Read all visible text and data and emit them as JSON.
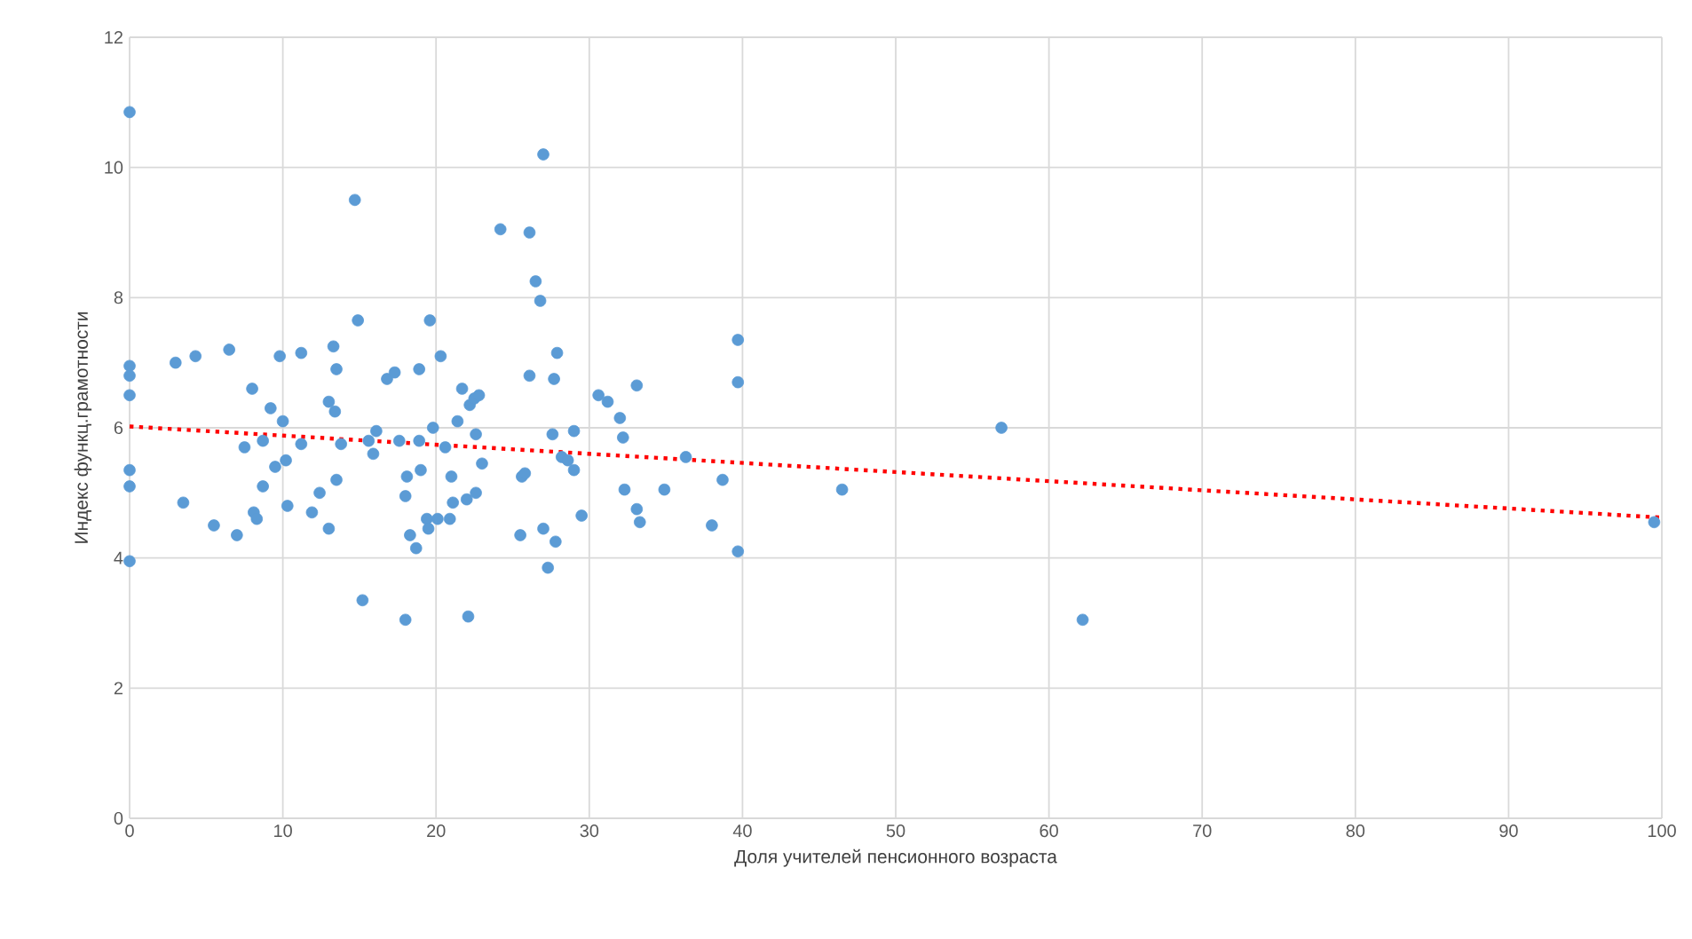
{
  "chart_data": {
    "type": "scatter",
    "xlabel": "Доля учителей пенсионного возраста",
    "ylabel": "Индекс функц.грамотности",
    "xlim": [
      0,
      100
    ],
    "ylim": [
      0,
      12
    ],
    "xticks": [
      0,
      10,
      20,
      30,
      40,
      50,
      60,
      70,
      80,
      90,
      100
    ],
    "yticks": [
      0,
      2,
      4,
      6,
      8,
      10,
      12
    ],
    "grid": true,
    "marker": "circle",
    "series": [
      {
        "color": "#5b9bd5",
        "x": [
          0,
          0,
          0,
          0,
          0,
          0,
          0,
          3,
          4.3,
          3.5,
          5.5,
          6.5,
          7,
          7.5,
          8,
          8.1,
          8.3,
          8.7,
          8.7,
          9.2,
          9.5,
          9.8,
          10,
          10.2,
          10.3,
          11.2,
          11.2,
          11.9,
          12.4,
          13,
          13,
          13.3,
          13.5,
          13.5,
          13.4,
          13.8,
          14.7,
          14.9,
          15.2,
          15.6,
          15.9,
          16.1,
          16.8,
          17.3,
          17.6,
          18,
          18,
          18.1,
          18.3,
          18.7,
          18.9,
          18.9,
          19,
          19.4,
          19.5,
          19.6,
          19.8,
          20.1,
          20.3,
          20.6,
          21,
          20.9,
          21.1,
          21.4,
          21.7,
          22,
          22.1,
          22.2,
          22.5,
          22.6,
          22.8,
          23,
          22.6,
          24.2,
          25.5,
          25.6,
          25.8,
          26.1,
          26.1,
          26.5,
          26.8,
          27,
          27,
          27.3,
          27.6,
          27.7,
          27.8,
          27.9,
          28.2,
          28.6,
          29,
          29,
          29.5,
          30.6,
          31.2,
          32,
          32.2,
          32.3,
          33.1,
          33.1,
          33.3,
          34.9,
          36.3,
          38,
          38.7,
          39.7,
          39.7,
          39.7,
          46.5,
          56.9,
          62.2,
          99.5
        ],
        "values": [
          10.85,
          6.95,
          6.8,
          6.5,
          5.35,
          5.1,
          3.95,
          7.0,
          7.1,
          4.85,
          4.5,
          7.2,
          4.35,
          5.7,
          6.6,
          4.7,
          4.6,
          5.8,
          5.1,
          6.3,
          5.4,
          7.1,
          6.1,
          5.5,
          4.8,
          5.75,
          7.15,
          4.7,
          5.0,
          4.45,
          6.4,
          7.25,
          6.9,
          5.2,
          6.25,
          5.75,
          9.5,
          7.65,
          3.35,
          5.8,
          5.6,
          5.95,
          6.75,
          6.85,
          5.8,
          4.95,
          3.05,
          5.25,
          4.35,
          4.15,
          6.9,
          5.8,
          5.35,
          4.6,
          4.45,
          7.65,
          6.0,
          4.6,
          7.1,
          5.7,
          5.25,
          4.6,
          4.85,
          6.1,
          6.6,
          4.9,
          3.1,
          6.35,
          6.45,
          5.9,
          6.5,
          5.45,
          5.0,
          9.05,
          4.35,
          5.25,
          5.3,
          9.0,
          6.8,
          8.25,
          7.95,
          10.2,
          4.45,
          3.85,
          5.9,
          6.75,
          4.25,
          7.15,
          5.55,
          5.5,
          5.95,
          5.35,
          4.65,
          6.5,
          6.4,
          6.15,
          5.85,
          5.05,
          6.65,
          4.75,
          4.55,
          5.05,
          5.55,
          4.5,
          5.2,
          7.35,
          6.7,
          4.1,
          5.05,
          6.0,
          3.05,
          4.55
        ]
      },
      {
        "type": "line",
        "color": "#ff0000",
        "line_style": "dotted",
        "marker": "none",
        "x": [
          0,
          100
        ],
        "values": [
          6.02,
          4.62
        ]
      }
    ]
  }
}
